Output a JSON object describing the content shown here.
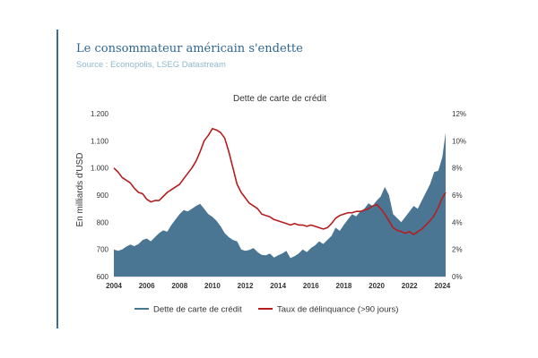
{
  "header": {
    "title": "Le consommateur américain s'endette",
    "source": "Source : Econopolis, LSEG Datastream"
  },
  "colors": {
    "accent": "#3d6d8c",
    "area": "#4a7593",
    "line": "#b51e1e",
    "title": "#2f6690",
    "source": "#8fb8cc"
  },
  "chart_data": {
    "type": "area",
    "title": "Dette de carte de crédit",
    "ylabel": "En milliards d'USD",
    "xlabel": "",
    "xlim": [
      2004,
      2024.2
    ],
    "ylim": [
      600,
      1200
    ],
    "y2lim": [
      0,
      12
    ],
    "x_ticks": [
      "2004",
      "2006",
      "2008",
      "2010",
      "2012",
      "2014",
      "2016",
      "2018",
      "2020",
      "2022",
      "2024"
    ],
    "y_ticks": [
      "600",
      "700",
      "800",
      "900",
      "1.000",
      "1.100",
      "1.200"
    ],
    "y2_ticks": [
      "0%",
      "2%",
      "4%",
      "6%",
      "8%",
      "10%",
      "12%"
    ],
    "legend": {
      "position": "bottom"
    },
    "series": [
      {
        "name": "Dette de carte de crédit",
        "axis": "left",
        "render": "area",
        "x": [
          2004.0,
          2004.25,
          2004.5,
          2004.75,
          2005.0,
          2005.25,
          2005.5,
          2005.75,
          2006.0,
          2006.25,
          2006.5,
          2006.75,
          2007.0,
          2007.25,
          2007.5,
          2007.75,
          2008.0,
          2008.25,
          2008.5,
          2008.75,
          2009.0,
          2009.25,
          2009.5,
          2009.75,
          2010.0,
          2010.25,
          2010.5,
          2010.75,
          2011.0,
          2011.25,
          2011.5,
          2011.75,
          2012.0,
          2012.25,
          2012.5,
          2012.75,
          2013.0,
          2013.25,
          2013.5,
          2013.75,
          2014.0,
          2014.25,
          2014.5,
          2014.75,
          2015.0,
          2015.25,
          2015.5,
          2015.75,
          2016.0,
          2016.25,
          2016.5,
          2016.75,
          2017.0,
          2017.25,
          2017.5,
          2017.75,
          2018.0,
          2018.25,
          2018.5,
          2018.75,
          2019.0,
          2019.25,
          2019.5,
          2019.75,
          2020.0,
          2020.25,
          2020.5,
          2020.75,
          2021.0,
          2021.25,
          2021.5,
          2021.75,
          2022.0,
          2022.25,
          2022.5,
          2022.75,
          2023.0,
          2023.25,
          2023.5,
          2023.75,
          2024.0,
          2024.2
        ],
        "values": [
          700,
          695,
          700,
          710,
          718,
          712,
          720,
          735,
          740,
          730,
          745,
          760,
          770,
          765,
          790,
          810,
          830,
          845,
          840,
          850,
          860,
          868,
          850,
          830,
          820,
          805,
          785,
          760,
          745,
          735,
          730,
          700,
          695,
          698,
          705,
          690,
          680,
          678,
          685,
          670,
          678,
          685,
          695,
          668,
          675,
          685,
          700,
          690,
          705,
          715,
          730,
          720,
          735,
          750,
          780,
          768,
          790,
          810,
          830,
          822,
          840,
          850,
          870,
          860,
          880,
          895,
          930,
          900,
          830,
          815,
          800,
          820,
          840,
          860,
          850,
          880,
          910,
          940,
          985,
          990,
          1040,
          1130
        ]
      },
      {
        "name": "Taux de délinquance (>90 jours)",
        "axis": "right",
        "render": "line",
        "x": [
          2004.0,
          2004.25,
          2004.5,
          2004.75,
          2005.0,
          2005.25,
          2005.5,
          2005.75,
          2006.0,
          2006.25,
          2006.5,
          2006.75,
          2007.0,
          2007.25,
          2007.5,
          2007.75,
          2008.0,
          2008.25,
          2008.5,
          2008.75,
          2009.0,
          2009.25,
          2009.5,
          2009.75,
          2010.0,
          2010.25,
          2010.5,
          2010.75,
          2011.0,
          2011.25,
          2011.5,
          2011.75,
          2012.0,
          2012.25,
          2012.5,
          2012.75,
          2013.0,
          2013.25,
          2013.5,
          2013.75,
          2014.0,
          2014.25,
          2014.5,
          2014.75,
          2015.0,
          2015.25,
          2015.5,
          2015.75,
          2016.0,
          2016.25,
          2016.5,
          2016.75,
          2017.0,
          2017.25,
          2017.5,
          2017.75,
          2018.0,
          2018.25,
          2018.5,
          2018.75,
          2019.0,
          2019.25,
          2019.5,
          2019.75,
          2020.0,
          2020.25,
          2020.5,
          2020.75,
          2021.0,
          2021.25,
          2021.5,
          2021.75,
          2022.0,
          2022.25,
          2022.5,
          2022.75,
          2023.0,
          2023.25,
          2023.5,
          2023.75,
          2024.0,
          2024.2
        ],
        "values": [
          8.0,
          7.7,
          7.3,
          7.1,
          6.9,
          6.5,
          6.2,
          6.1,
          5.7,
          5.5,
          5.6,
          5.6,
          5.9,
          6.2,
          6.4,
          6.6,
          6.8,
          7.2,
          7.6,
          8.0,
          8.5,
          9.2,
          10.0,
          10.4,
          10.9,
          10.8,
          10.6,
          10.2,
          9.2,
          8.0,
          6.8,
          6.2,
          5.8,
          5.4,
          5.2,
          5.0,
          4.6,
          4.5,
          4.4,
          4.2,
          4.1,
          4.0,
          3.9,
          3.8,
          3.9,
          3.8,
          3.8,
          3.7,
          3.8,
          3.7,
          3.6,
          3.5,
          3.6,
          3.9,
          4.3,
          4.5,
          4.6,
          4.7,
          4.7,
          4.8,
          4.8,
          4.9,
          5.0,
          5.2,
          5.3,
          5.0,
          4.6,
          4.1,
          3.6,
          3.4,
          3.3,
          3.2,
          3.3,
          3.1,
          3.3,
          3.5,
          3.8,
          4.1,
          4.5,
          5.1,
          5.8,
          6.2
        ]
      }
    ]
  }
}
